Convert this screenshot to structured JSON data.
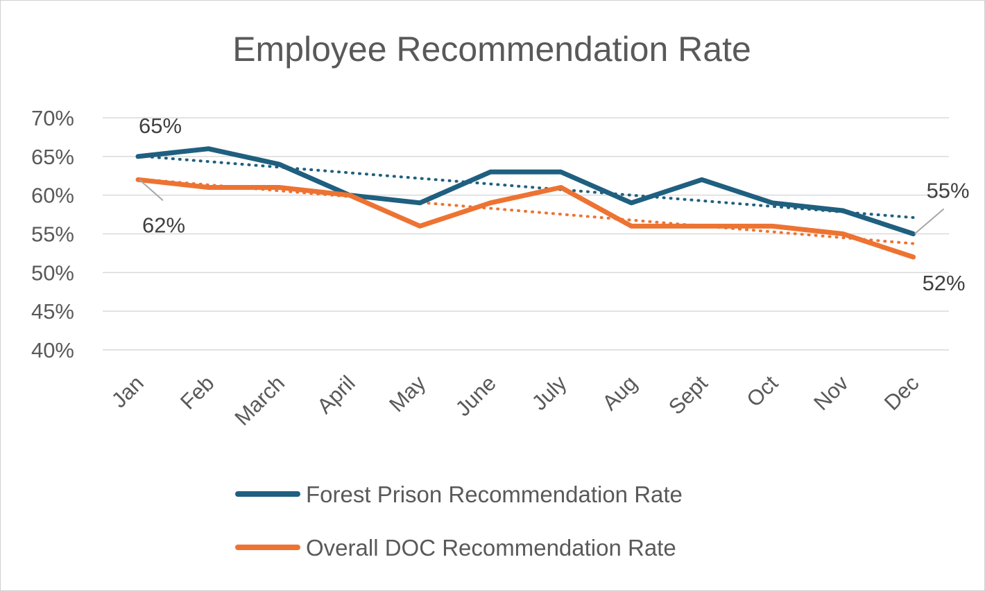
{
  "chart_data": {
    "type": "line",
    "title": "Employee Recommendation Rate",
    "categories": [
      "Jan",
      "Feb",
      "March",
      "April",
      "May",
      "June",
      "July",
      "Aug",
      "Sept",
      "Oct",
      "Nov",
      "Dec"
    ],
    "ylim": [
      40,
      70
    ],
    "ytick_step": 5,
    "ytick_suffix": "%",
    "grid": true,
    "legend_position": "bottom",
    "trendlines": true,
    "series": [
      {
        "name": "Forest Prison Recommendation Rate",
        "color": "#1f5f7f",
        "values": [
          65,
          66,
          64,
          60,
          59,
          63,
          63,
          59,
          62,
          59,
          58,
          55
        ],
        "labels": [
          {
            "index": 0,
            "text": "65%"
          },
          {
            "index": 11,
            "text": "55%"
          }
        ]
      },
      {
        "name": "Overall DOC Recommendation Rate",
        "color": "#ed7332",
        "values": [
          62,
          61,
          61,
          60,
          56,
          59,
          61,
          56,
          56,
          56,
          55,
          52
        ],
        "labels": [
          {
            "index": 0,
            "text": "62%"
          },
          {
            "index": 11,
            "text": "52%"
          }
        ]
      }
    ]
  }
}
